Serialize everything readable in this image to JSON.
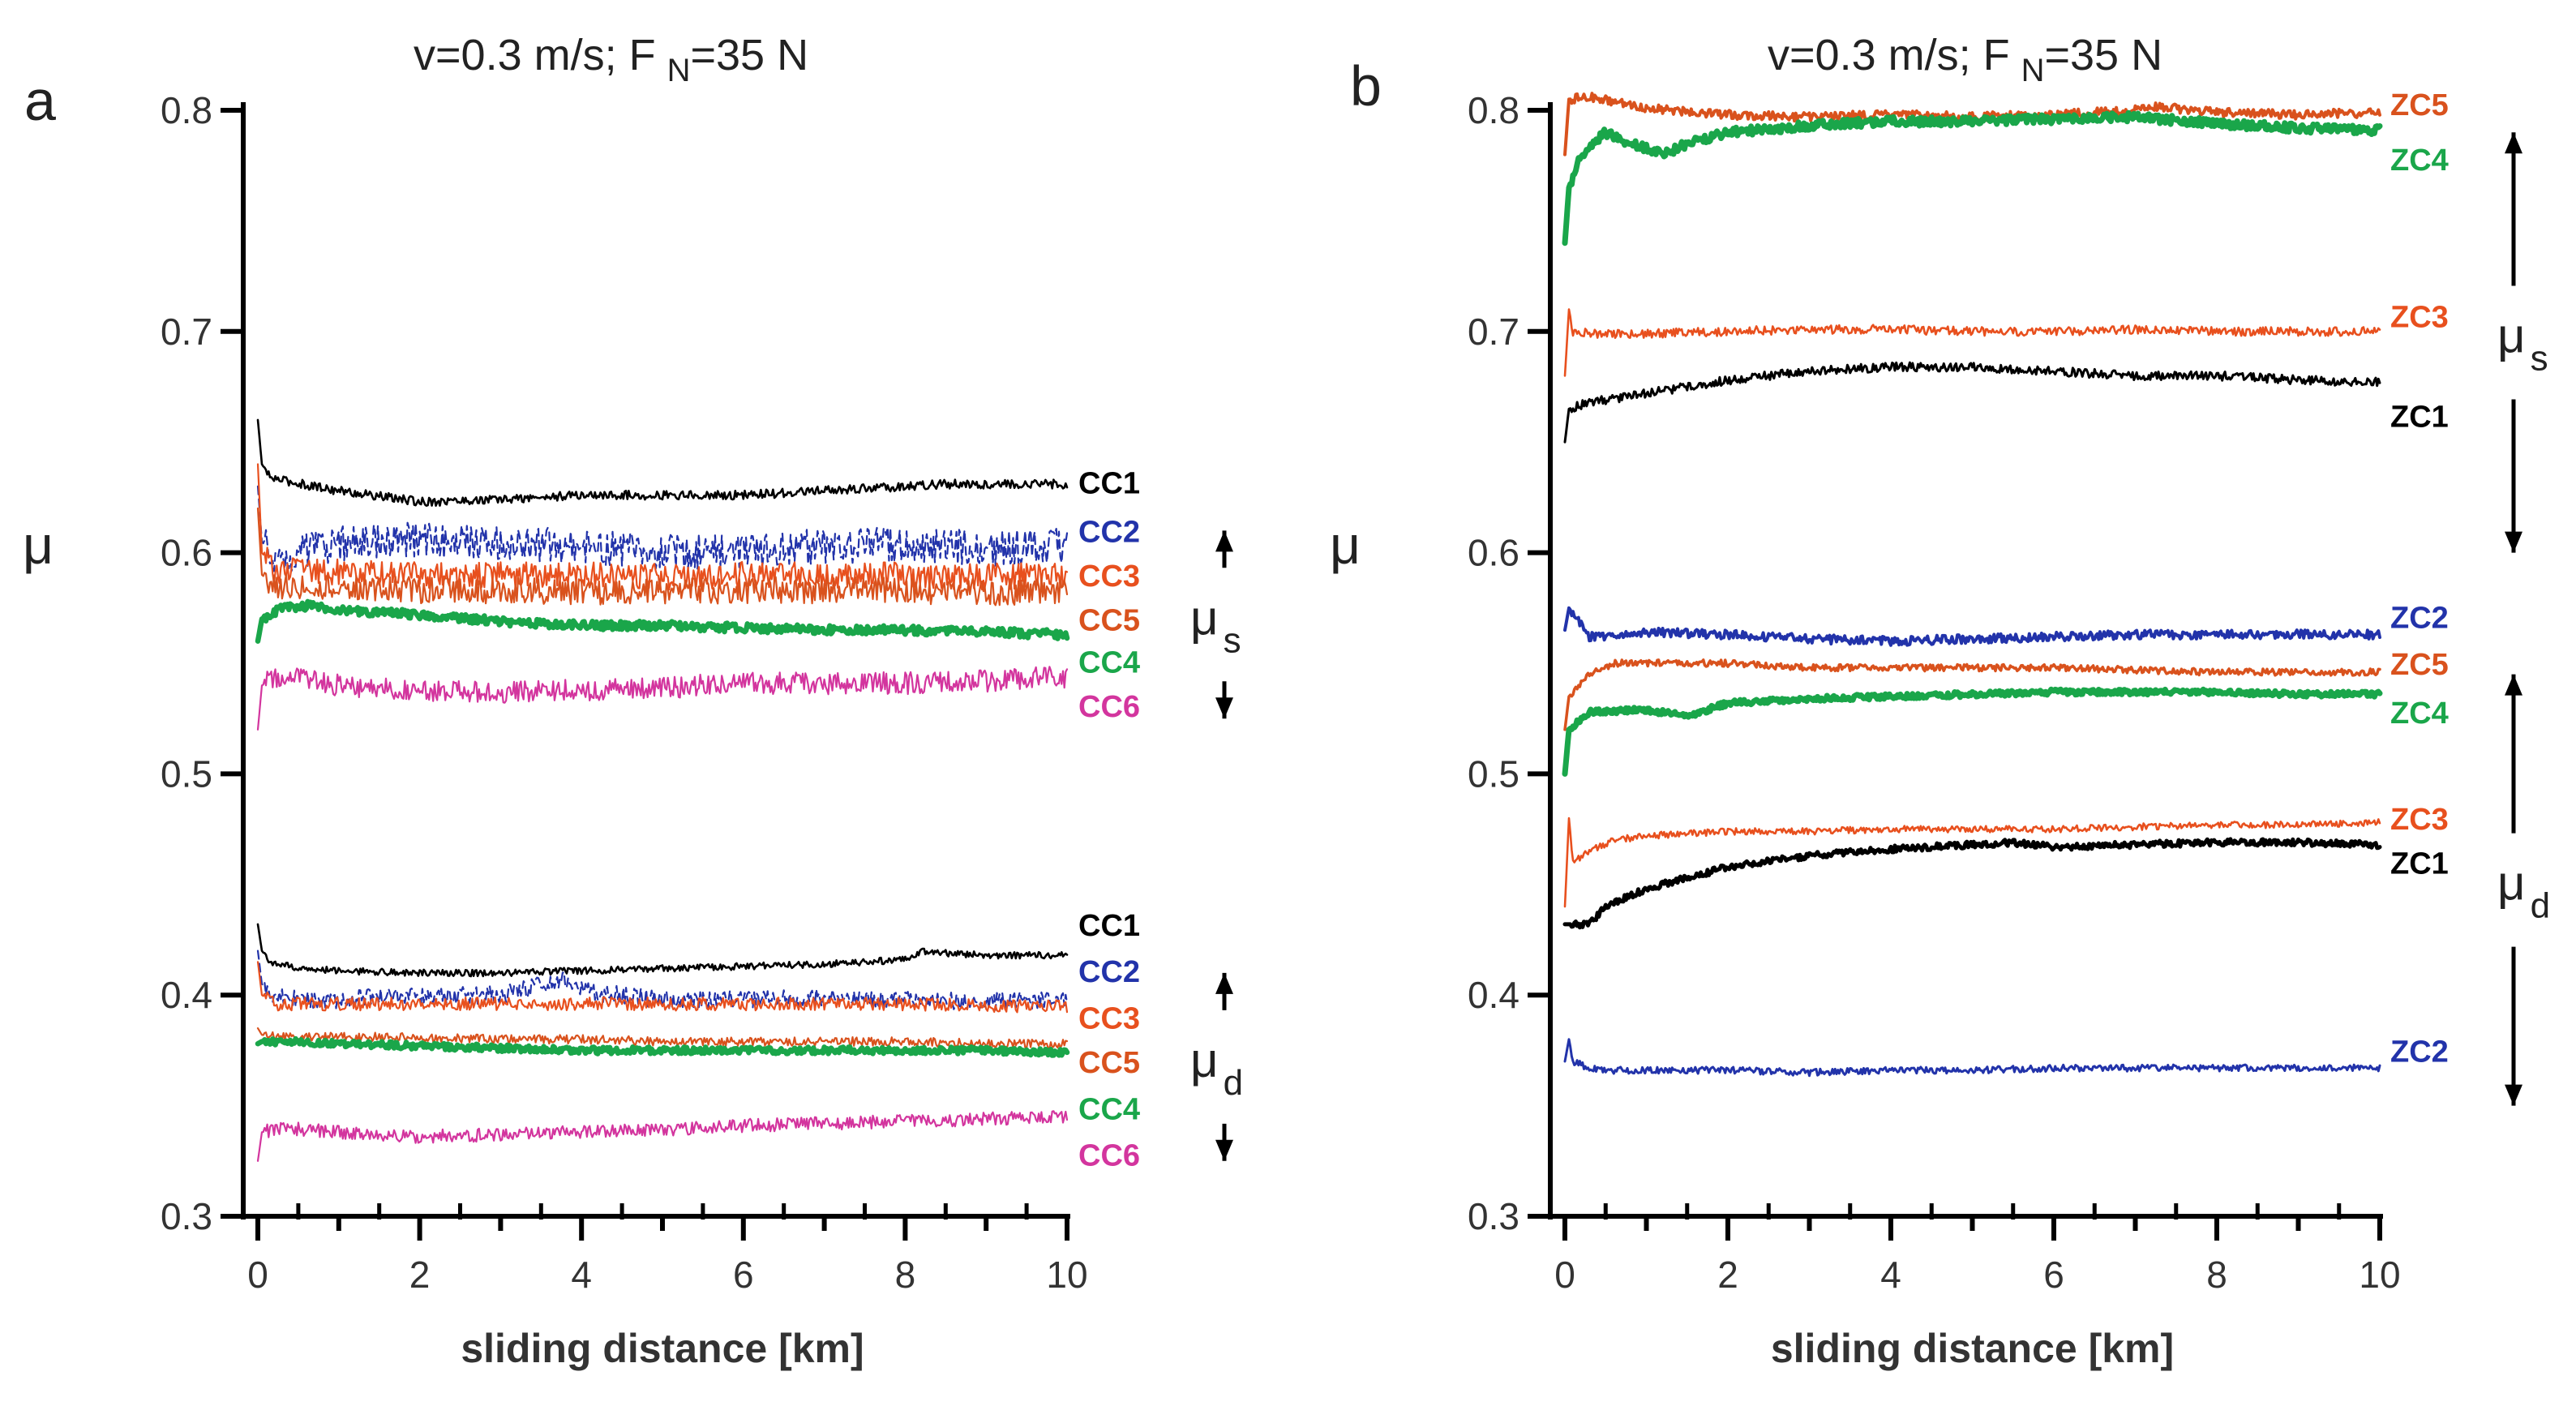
{
  "chart_data": [
    {
      "type": "line",
      "panel_label": "a",
      "title": "v=0.3 m/s; F",
      "title_sub": "N",
      "title_end": "=35 N",
      "xlabel": "sliding distance [km]",
      "ylabel": "μ",
      "xlim": [
        0,
        10
      ],
      "ylim": [
        0.3,
        0.8
      ],
      "x_ticks": [
        0,
        2,
        4,
        6,
        8,
        10
      ],
      "y_ticks": [
        0.3,
        0.4,
        0.5,
        0.6,
        0.7,
        0.8
      ],
      "y_tick_labels": [
        "0.3",
        "0.4",
        "0.5",
        "0.6",
        "0.7",
        "0.8"
      ],
      "grid": false,
      "brackets": [
        {
          "label": "μ",
          "sub": "s",
          "y_top": 0.61,
          "y_bottom": 0.525
        },
        {
          "label": "μ",
          "sub": "d",
          "y_top": 0.41,
          "y_bottom": 0.325
        }
      ],
      "series": [
        {
          "name": "CC1",
          "color": "#000000",
          "width": 2.6,
          "noise": 0.002,
          "x": [
            0,
            0.05,
            0.15,
            0.4,
            1,
            2,
            3,
            4,
            5,
            6,
            7,
            8,
            8.5,
            9,
            10
          ],
          "y": [
            0.66,
            0.64,
            0.634,
            0.632,
            0.628,
            0.623,
            0.624,
            0.626,
            0.626,
            0.626,
            0.628,
            0.63,
            0.631,
            0.631,
            0.631
          ]
        },
        {
          "name": "CC2",
          "color": "#2233aa",
          "width": 2.2,
          "noise": 0.008,
          "dashed": true,
          "x": [
            0,
            0.05,
            0.2,
            0.5,
            1,
            2,
            3,
            4,
            5,
            6,
            7,
            8,
            9,
            10
          ],
          "y": [
            0.63,
            0.605,
            0.598,
            0.6,
            0.604,
            0.606,
            0.604,
            0.603,
            0.6,
            0.601,
            0.603,
            0.604,
            0.602,
            0.603
          ]
        },
        {
          "name": "CC3",
          "color": "#e8501e",
          "width": 2.2,
          "noise": 0.006,
          "x": [
            0,
            0.05,
            0.2,
            0.5,
            1,
            2,
            3,
            4,
            5,
            6,
            7,
            8,
            9,
            10
          ],
          "y": [
            0.64,
            0.6,
            0.592,
            0.592,
            0.591,
            0.59,
            0.59,
            0.59,
            0.589,
            0.59,
            0.59,
            0.59,
            0.589,
            0.59
          ]
        },
        {
          "name": "CC5",
          "color": "#d9521d",
          "width": 2.2,
          "noise": 0.006,
          "x": [
            0,
            0.05,
            0.2,
            0.5,
            1,
            2,
            3,
            4,
            5,
            6,
            7,
            8,
            9,
            10
          ],
          "y": [
            0.62,
            0.59,
            0.585,
            0.585,
            0.584,
            0.583,
            0.583,
            0.582,
            0.582,
            0.583,
            0.583,
            0.583,
            0.582,
            0.583
          ]
        },
        {
          "name": "CC4",
          "color": "#1aa64a",
          "width": 6.5,
          "noise": 0.002,
          "x": [
            0,
            0.05,
            0.3,
            0.6,
            1,
            2,
            3,
            4,
            5,
            6,
            7,
            8,
            9,
            10
          ],
          "y": [
            0.56,
            0.57,
            0.575,
            0.576,
            0.574,
            0.572,
            0.569,
            0.567,
            0.567,
            0.566,
            0.565,
            0.565,
            0.564,
            0.563
          ]
        },
        {
          "name": "CC6",
          "color": "#d3359e",
          "width": 2.2,
          "noise": 0.005,
          "x": [
            0,
            0.05,
            0.3,
            0.6,
            1,
            2,
            3,
            4,
            5,
            6,
            7,
            8,
            9,
            10
          ],
          "y": [
            0.52,
            0.54,
            0.545,
            0.542,
            0.54,
            0.537,
            0.537,
            0.538,
            0.539,
            0.541,
            0.541,
            0.541,
            0.542,
            0.544
          ]
        },
        {
          "name": "CC1",
          "color": "#000000",
          "width": 2.6,
          "noise": 0.0015,
          "x": [
            0,
            0.05,
            0.15,
            0.5,
            1,
            2,
            3,
            4,
            5,
            6,
            7,
            8,
            8.2,
            8.5,
            9,
            10
          ],
          "y": [
            0.432,
            0.42,
            0.415,
            0.412,
            0.411,
            0.41,
            0.41,
            0.411,
            0.412,
            0.413,
            0.414,
            0.416,
            0.42,
            0.419,
            0.418,
            0.418
          ]
        },
        {
          "name": "CC2",
          "color": "#2233aa",
          "width": 2.2,
          "noise": 0.004,
          "dashed": true,
          "x": [
            0,
            0.05,
            0.2,
            0.6,
            1,
            2,
            3,
            3.8,
            4.2,
            5,
            6,
            7,
            8,
            9,
            10
          ],
          "y": [
            0.42,
            0.405,
            0.4,
            0.398,
            0.398,
            0.4,
            0.4,
            0.407,
            0.401,
            0.398,
            0.398,
            0.399,
            0.398,
            0.397,
            0.398
          ]
        },
        {
          "name": "CC3",
          "color": "#e8501e",
          "width": 2.2,
          "noise": 0.003,
          "x": [
            0,
            0.05,
            0.2,
            0.5,
            1,
            2,
            3,
            4,
            5,
            6,
            7,
            8,
            9,
            10
          ],
          "y": [
            0.415,
            0.4,
            0.396,
            0.396,
            0.396,
            0.396,
            0.396,
            0.396,
            0.396,
            0.396,
            0.396,
            0.396,
            0.395,
            0.395
          ]
        },
        {
          "name": "CC5",
          "color": "#d9521d",
          "width": 2.2,
          "noise": 0.002,
          "x": [
            0,
            0.05,
            0.3,
            1,
            2,
            3,
            4,
            5,
            6,
            7,
            8,
            9,
            10
          ],
          "y": [
            0.385,
            0.382,
            0.381,
            0.381,
            0.381,
            0.38,
            0.38,
            0.379,
            0.379,
            0.379,
            0.379,
            0.378,
            0.378
          ]
        },
        {
          "name": "CC4",
          "color": "#1aa64a",
          "width": 6.5,
          "noise": 0.0015,
          "x": [
            0,
            0.05,
            0.3,
            1,
            2,
            3,
            4,
            5,
            6,
            7,
            8,
            9,
            10
          ],
          "y": [
            0.378,
            0.379,
            0.379,
            0.378,
            0.377,
            0.376,
            0.375,
            0.375,
            0.375,
            0.375,
            0.375,
            0.375,
            0.374
          ]
        },
        {
          "name": "CC6",
          "color": "#d3359e",
          "width": 2.2,
          "noise": 0.003,
          "x": [
            0,
            0.05,
            0.3,
            1,
            2,
            3,
            4,
            5,
            6,
            7,
            8,
            9,
            10
          ],
          "y": [
            0.325,
            0.338,
            0.34,
            0.338,
            0.336,
            0.337,
            0.338,
            0.339,
            0.341,
            0.342,
            0.343,
            0.344,
            0.345
          ]
        }
      ],
      "end_labels": [
        {
          "text": "CC1",
          "color": "#000000",
          "y": 0.632
        },
        {
          "text": "CC2",
          "color": "#2233aa",
          "y": 0.61
        },
        {
          "text": "CC3",
          "color": "#e8501e",
          "y": 0.59
        },
        {
          "text": "CC5",
          "color": "#d9521d",
          "y": 0.57
        },
        {
          "text": "CC4",
          "color": "#1aa64a",
          "y": 0.551
        },
        {
          "text": "CC6",
          "color": "#d3359e",
          "y": 0.531
        },
        {
          "text": "CC1",
          "color": "#000000",
          "y": 0.432
        },
        {
          "text": "CC2",
          "color": "#2233aa",
          "y": 0.411
        },
        {
          "text": "CC3",
          "color": "#e8501e",
          "y": 0.39
        },
        {
          "text": "CC5",
          "color": "#d9521d",
          "y": 0.37
        },
        {
          "text": "CC4",
          "color": "#1aa64a",
          "y": 0.349
        },
        {
          "text": "CC6",
          "color": "#d3359e",
          "y": 0.328
        }
      ]
    },
    {
      "type": "line",
      "panel_label": "b",
      "title": "v=0.3 m/s; F",
      "title_sub": "N",
      "title_end": "=35 N",
      "xlabel": "sliding distance [km]",
      "ylabel": "μ",
      "xlim": [
        0,
        10
      ],
      "ylim": [
        0.3,
        0.8
      ],
      "x_ticks": [
        0,
        2,
        4,
        6,
        8,
        10
      ],
      "y_ticks": [
        0.3,
        0.4,
        0.5,
        0.6,
        0.7,
        0.8
      ],
      "y_tick_labels": [
        "0.3",
        "0.4",
        "0.5",
        "0.6",
        "0.7",
        "0.8"
      ],
      "grid": false,
      "brackets": [
        {
          "label": "μ",
          "sub": "s",
          "y_top": 0.79,
          "y_bottom": 0.6
        },
        {
          "label": "μ",
          "sub": "d",
          "y_top": 0.545,
          "y_bottom": 0.35
        }
      ],
      "series": [
        {
          "name": "ZC5",
          "color": "#d9521d",
          "width": 4,
          "noise": 0.002,
          "x": [
            0,
            0.05,
            0.3,
            1,
            2,
            3,
            4,
            5,
            6,
            7,
            7.2,
            8,
            9,
            10
          ],
          "y": [
            0.78,
            0.805,
            0.806,
            0.801,
            0.798,
            0.797,
            0.798,
            0.797,
            0.798,
            0.8,
            0.802,
            0.799,
            0.798,
            0.799
          ]
        },
        {
          "name": "ZC4",
          "color": "#1aa64a",
          "width": 7,
          "noise": 0.002,
          "x": [
            0,
            0.05,
            0.2,
            0.5,
            0.8,
            1.2,
            1.5,
            2,
            3,
            4,
            5,
            6,
            7,
            8,
            9,
            10
          ],
          "y": [
            0.74,
            0.765,
            0.78,
            0.79,
            0.785,
            0.78,
            0.785,
            0.79,
            0.793,
            0.795,
            0.795,
            0.796,
            0.797,
            0.794,
            0.792,
            0.791
          ]
        },
        {
          "name": "ZC3",
          "color": "#e8501e",
          "width": 2.6,
          "noise": 0.002,
          "x": [
            0,
            0.05,
            0.1,
            0.3,
            1,
            2,
            3,
            4,
            5,
            6,
            7,
            8,
            9,
            10
          ],
          "y": [
            0.68,
            0.71,
            0.7,
            0.699,
            0.699,
            0.7,
            0.701,
            0.701,
            0.7,
            0.7,
            0.701,
            0.7,
            0.7,
            0.7
          ]
        },
        {
          "name": "ZC1",
          "color": "#000000",
          "width": 3,
          "noise": 0.002,
          "x": [
            0,
            0.05,
            0.3,
            1,
            2,
            3,
            4,
            5,
            6,
            7,
            8,
            9,
            10
          ],
          "y": [
            0.65,
            0.665,
            0.668,
            0.672,
            0.678,
            0.682,
            0.684,
            0.684,
            0.682,
            0.68,
            0.68,
            0.678,
            0.677
          ]
        },
        {
          "name": "ZC2",
          "color": "#2233aa",
          "width": 4,
          "noise": 0.002,
          "x": [
            0,
            0.05,
            0.3,
            1,
            2,
            3,
            4,
            5,
            6,
            7,
            8,
            9,
            10
          ],
          "y": [
            0.565,
            0.575,
            0.562,
            0.564,
            0.563,
            0.561,
            0.56,
            0.561,
            0.562,
            0.563,
            0.563,
            0.563,
            0.563
          ]
        },
        {
          "name": "ZC5",
          "color": "#d9521d",
          "width": 3.5,
          "noise": 0.0015,
          "x": [
            0,
            0.05,
            0.3,
            0.6,
            1,
            2,
            3,
            4,
            5,
            6,
            7,
            8,
            9,
            10
          ],
          "y": [
            0.52,
            0.535,
            0.545,
            0.55,
            0.55,
            0.55,
            0.548,
            0.548,
            0.548,
            0.548,
            0.547,
            0.546,
            0.546,
            0.546
          ]
        },
        {
          "name": "ZC4",
          "color": "#1aa64a",
          "width": 7,
          "noise": 0.0012,
          "x": [
            0,
            0.05,
            0.3,
            1,
            1.5,
            2,
            3,
            4,
            5,
            6,
            7,
            8,
            9,
            10
          ],
          "y": [
            0.5,
            0.52,
            0.528,
            0.529,
            0.526,
            0.532,
            0.534,
            0.535,
            0.536,
            0.537,
            0.537,
            0.537,
            0.536,
            0.536
          ]
        },
        {
          "name": "ZC3",
          "color": "#e8501e",
          "width": 2.6,
          "noise": 0.0015,
          "x": [
            0,
            0.05,
            0.1,
            0.3,
            0.6,
            1,
            2,
            3,
            4,
            5,
            6,
            7,
            8,
            9,
            10
          ],
          "y": [
            0.44,
            0.48,
            0.46,
            0.465,
            0.47,
            0.472,
            0.474,
            0.474,
            0.475,
            0.475,
            0.475,
            0.476,
            0.477,
            0.477,
            0.478
          ]
        },
        {
          "name": "ZC1",
          "color": "#000000",
          "width": 5,
          "noise": 0.0015,
          "x": [
            0,
            0.05,
            0.3,
            0.5,
            1,
            2,
            3,
            4,
            5,
            5.5,
            6,
            7,
            8,
            9,
            10
          ],
          "y": [
            0.432,
            0.432,
            0.432,
            0.44,
            0.448,
            0.458,
            0.463,
            0.466,
            0.468,
            0.469,
            0.467,
            0.468,
            0.469,
            0.469,
            0.468
          ]
        },
        {
          "name": "ZC2",
          "color": "#2233aa",
          "width": 3,
          "noise": 0.0015,
          "x": [
            0,
            0.05,
            0.1,
            0.3,
            0.6,
            1,
            2,
            3,
            4,
            5,
            6,
            7,
            8,
            9,
            10
          ],
          "y": [
            0.37,
            0.38,
            0.37,
            0.367,
            0.366,
            0.366,
            0.366,
            0.365,
            0.366,
            0.366,
            0.367,
            0.367,
            0.367,
            0.367,
            0.367
          ]
        }
      ],
      "end_labels": [
        {
          "text": "ZC5",
          "color": "#d9521d",
          "y": 0.803
        },
        {
          "text": "ZC4",
          "color": "#1aa64a",
          "y": 0.778
        },
        {
          "text": "ZC3",
          "color": "#e8501e",
          "y": 0.707
        },
        {
          "text": "ZC1",
          "color": "#000000",
          "y": 0.662
        },
        {
          "text": "ZC2",
          "color": "#2233aa",
          "y": 0.571
        },
        {
          "text": "ZC5",
          "color": "#d9521d",
          "y": 0.55
        },
        {
          "text": "ZC4",
          "color": "#1aa64a",
          "y": 0.528
        },
        {
          "text": "ZC3",
          "color": "#e8501e",
          "y": 0.48
        },
        {
          "text": "ZC1",
          "color": "#000000",
          "y": 0.46
        },
        {
          "text": "ZC2",
          "color": "#2233aa",
          "y": 0.375
        }
      ]
    }
  ]
}
